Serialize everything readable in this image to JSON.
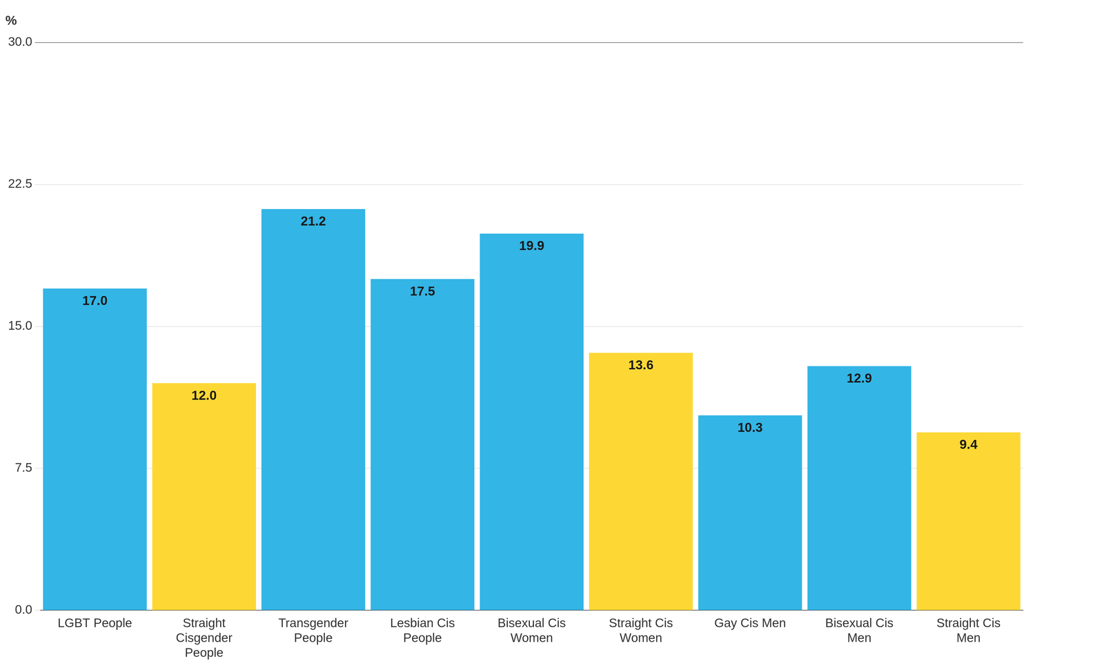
{
  "chart_data": {
    "type": "bar",
    "y_label": "%",
    "categories": [
      "LGBT People",
      "Straight Cisgender People",
      "Transgender People",
      "Lesbian Cis People",
      "Bisexual Cis Women",
      "Straight Cis Women",
      "Gay Cis Men",
      "Bisexual Cis Men",
      "Straight Cis Men"
    ],
    "values": [
      17.0,
      12.0,
      21.2,
      17.5,
      19.9,
      13.6,
      10.3,
      12.9,
      9.4
    ],
    "value_labels": [
      "17.0",
      "12.0",
      "21.2",
      "17.5",
      "19.9",
      "13.6",
      "10.3",
      "12.9",
      "9.4"
    ],
    "colors": [
      "#33b5e5",
      "#fdd835",
      "#33b5e5",
      "#33b5e5",
      "#33b5e5",
      "#fdd835",
      "#33b5e5",
      "#33b5e5",
      "#fdd835"
    ],
    "ylim": [
      0,
      30
    ],
    "yticks": [
      {
        "value": 0,
        "label": "0.0"
      },
      {
        "value": 7.5,
        "label": "7.5"
      },
      {
        "value": 15,
        "label": "15.0"
      },
      {
        "value": 22.5,
        "label": "22.5"
      },
      {
        "value": 30,
        "label": "30.0"
      }
    ],
    "grid": true,
    "data_labels": true
  }
}
